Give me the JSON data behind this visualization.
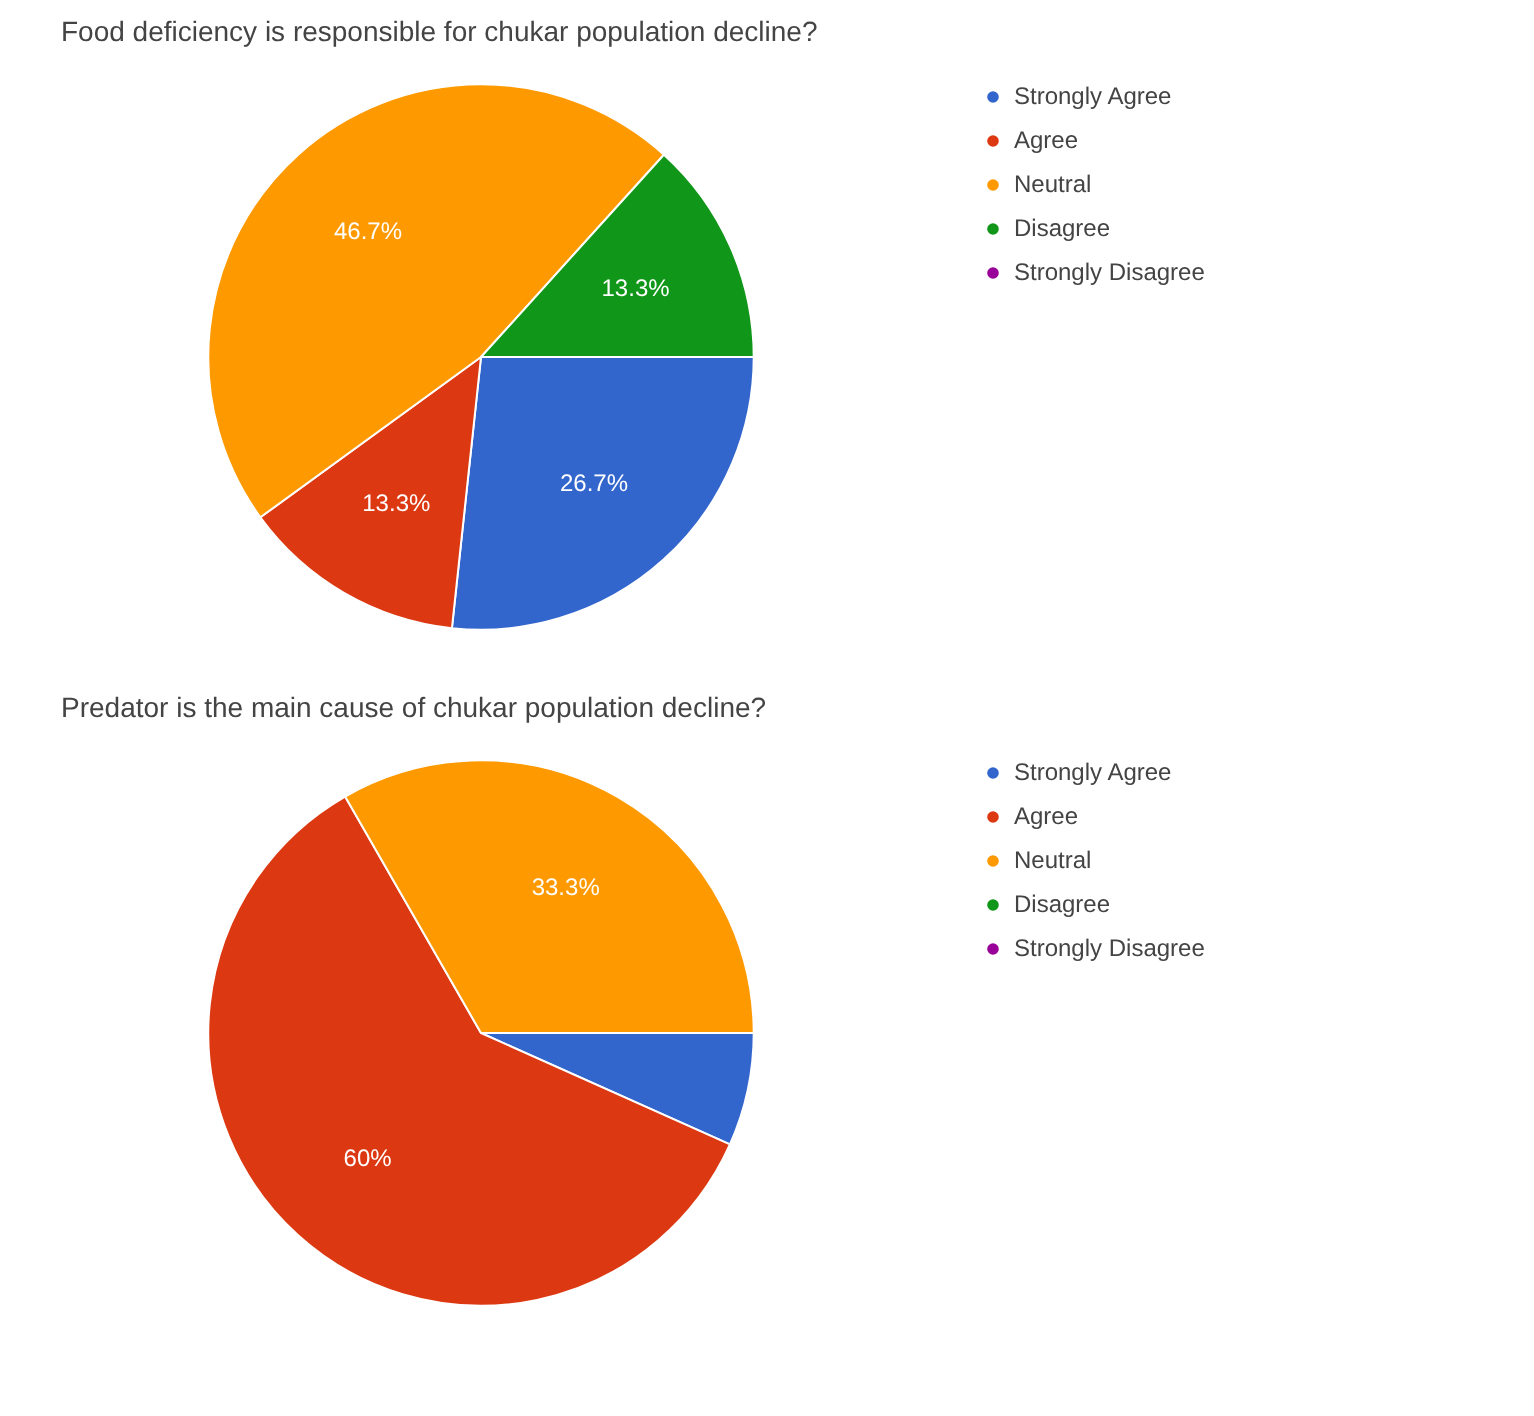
{
  "chart_data": [
    {
      "type": "pie",
      "title": "Food deficiency is responsible for chukar population decline?",
      "categories": [
        "Strongly Agree",
        "Agree",
        "Neutral",
        "Disagree",
        "Strongly Disagree"
      ],
      "values": [
        26.7,
        13.3,
        46.7,
        13.3,
        0
      ],
      "colors": [
        "#3366cc",
        "#dc3912",
        "#ff9900",
        "#109618",
        "#990099"
      ],
      "value_labels": [
        "26.7%",
        "13.3%",
        "46.7%",
        "13.3%",
        null
      ],
      "legend": "right"
    },
    {
      "type": "pie",
      "title": "Predator is the main cause of chukar population decline?",
      "categories": [
        "Strongly Agree",
        "Agree",
        "Neutral",
        "Disagree",
        "Strongly Disagree"
      ],
      "values": [
        6.7,
        60,
        33.3,
        0,
        0
      ],
      "colors": [
        "#3366cc",
        "#dc3912",
        "#ff9900",
        "#109618",
        "#990099"
      ],
      "value_labels": [
        null,
        "60%",
        "33.3%",
        null,
        null
      ],
      "legend": "right"
    }
  ]
}
